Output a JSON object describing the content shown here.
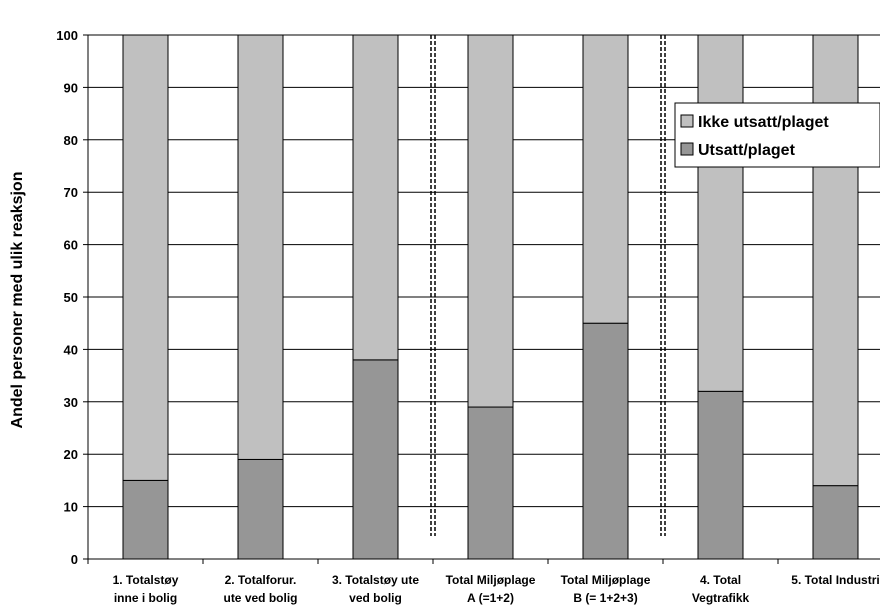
{
  "chart_data": {
    "type": "bar",
    "stacked": true,
    "categories": [
      [
        "1. Totalstøy",
        "inne i bolig"
      ],
      [
        "2. Totalforur.",
        "ute ved bolig"
      ],
      [
        "3. Totalstøy ute",
        "ved bolig"
      ],
      [
        "Total Miljøplage",
        "A (=1+2)"
      ],
      [
        "Total Miljøplage",
        "B (= 1+2+3)"
      ],
      [
        "4. Total",
        "Vegtrafikk"
      ],
      [
        "5. Total Industri",
        ""
      ]
    ],
    "series": [
      {
        "name": "Utsatt/plaget",
        "values": [
          15,
          19,
          38,
          29,
          45,
          32,
          14
        ],
        "color": "#969696"
      },
      {
        "name": "Ikke utsatt/plaget",
        "values": [
          85,
          81,
          62,
          71,
          55,
          68,
          86
        ],
        "color": "#c0c0c0"
      }
    ],
    "legend": [
      "Ikke utsatt/plaget",
      "Utsatt/plaget"
    ],
    "legend_position": "top-right",
    "ylabel": "Andel personer med ulik reaksjon",
    "ylim": [
      0,
      100
    ],
    "yticks": [
      0,
      10,
      20,
      30,
      40,
      50,
      60,
      70,
      80,
      90,
      100
    ],
    "grid": true,
    "separators_after_category": [
      2,
      4
    ]
  }
}
